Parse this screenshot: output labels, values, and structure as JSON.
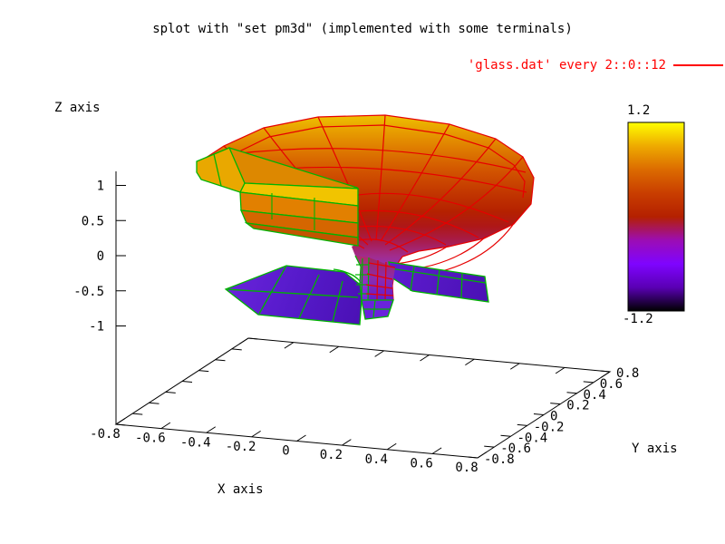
{
  "title": "splot with \"set pm3d\" (implemented with some terminals)",
  "legend": {
    "label": "'glass.dat' every 2::0::12",
    "color": "#ff0000"
  },
  "axes": {
    "x": {
      "label": "X axis"
    },
    "y": {
      "label": "Y axis"
    },
    "z": {
      "label": "Z axis"
    }
  },
  "colorbox": {
    "max_label": "1.2",
    "min_label": "-1.2"
  },
  "chart_data": {
    "type": "surface",
    "title": "splot with \"set pm3d\" (implemented with some terminals)",
    "legend_entries": [
      {
        "label": "'glass.dat' every 2::0::12",
        "color": "#ff0000"
      }
    ],
    "xlabel": "X axis",
    "ylabel": "Y axis",
    "zlabel": "Z axis",
    "x_ticks": [
      -0.8,
      -0.6,
      -0.4,
      -0.2,
      0,
      0.2,
      0.4,
      0.6,
      0.8
    ],
    "y_ticks": [
      -0.8,
      -0.6,
      -0.4,
      -0.2,
      0,
      0.2,
      0.4,
      0.6,
      0.8
    ],
    "z_ticks": [
      -1,
      -0.5,
      0,
      0.5,
      1
    ],
    "x_range": [
      -0.8,
      0.8
    ],
    "y_range": [
      -0.8,
      0.8
    ],
    "z_tick_range": [
      -1,
      1
    ],
    "colorbox_range": [
      -1.2,
      1.2
    ],
    "palette": {
      "name": "pm3d default palette (rgbformulae 7,5,15: black-blue-violet-red-orange-yellow)",
      "stops": [
        "#000000",
        "#5A00B4",
        "#7F04FF",
        "#9C0DB4",
        "#B42000",
        "#C93E00",
        "#DC6B00",
        "#EEAA00",
        "#FFFF00"
      ]
    },
    "surface": "goblet/glass shape: wide flared bowl at top (z up to ~1, yellow/orange/red), narrow central stem (magenta/violet), splayed flat base petals at bottom (z near -1, blue-violet)",
    "mesh_colors": {
      "far_side": "#ff0000",
      "near_side": "#00b400"
    },
    "grid": false,
    "legend_position": "top-right"
  }
}
